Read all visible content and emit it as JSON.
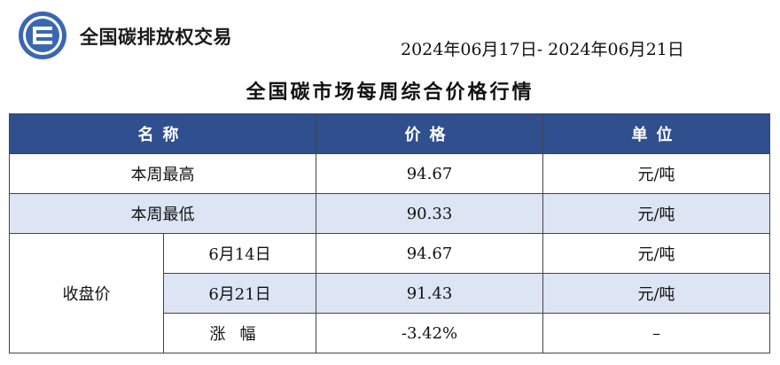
{
  "header": {
    "brand_name": "全国碳排放权交易",
    "date_range": "2024年06月17日- 2024年06月21日",
    "title": "全国碳市场每周综合价格行情",
    "logo_icon": "carbon-exchange-logo-icon"
  },
  "table": {
    "columns": [
      "名称",
      "价格",
      "单位"
    ],
    "rows": {
      "weekly_high": {
        "label": "本周最高",
        "price": "94.67",
        "unit": "元/吨"
      },
      "weekly_low": {
        "label": "本周最低",
        "price": "90.33",
        "unit": "元/吨"
      },
      "closing": {
        "label": "收盘价",
        "sub_rows": [
          {
            "label": "6月14日",
            "price": "94.67",
            "unit": "元/吨"
          },
          {
            "label": "6月21日",
            "price": "91.43",
            "unit": "元/吨"
          },
          {
            "label": "涨幅",
            "price": "-3.42%",
            "unit": "–"
          }
        ]
      }
    }
  },
  "colors": {
    "header_bg": "#2f4f8f",
    "row_shade": "#dde4f3",
    "logo_blue": "#3a67b3"
  }
}
